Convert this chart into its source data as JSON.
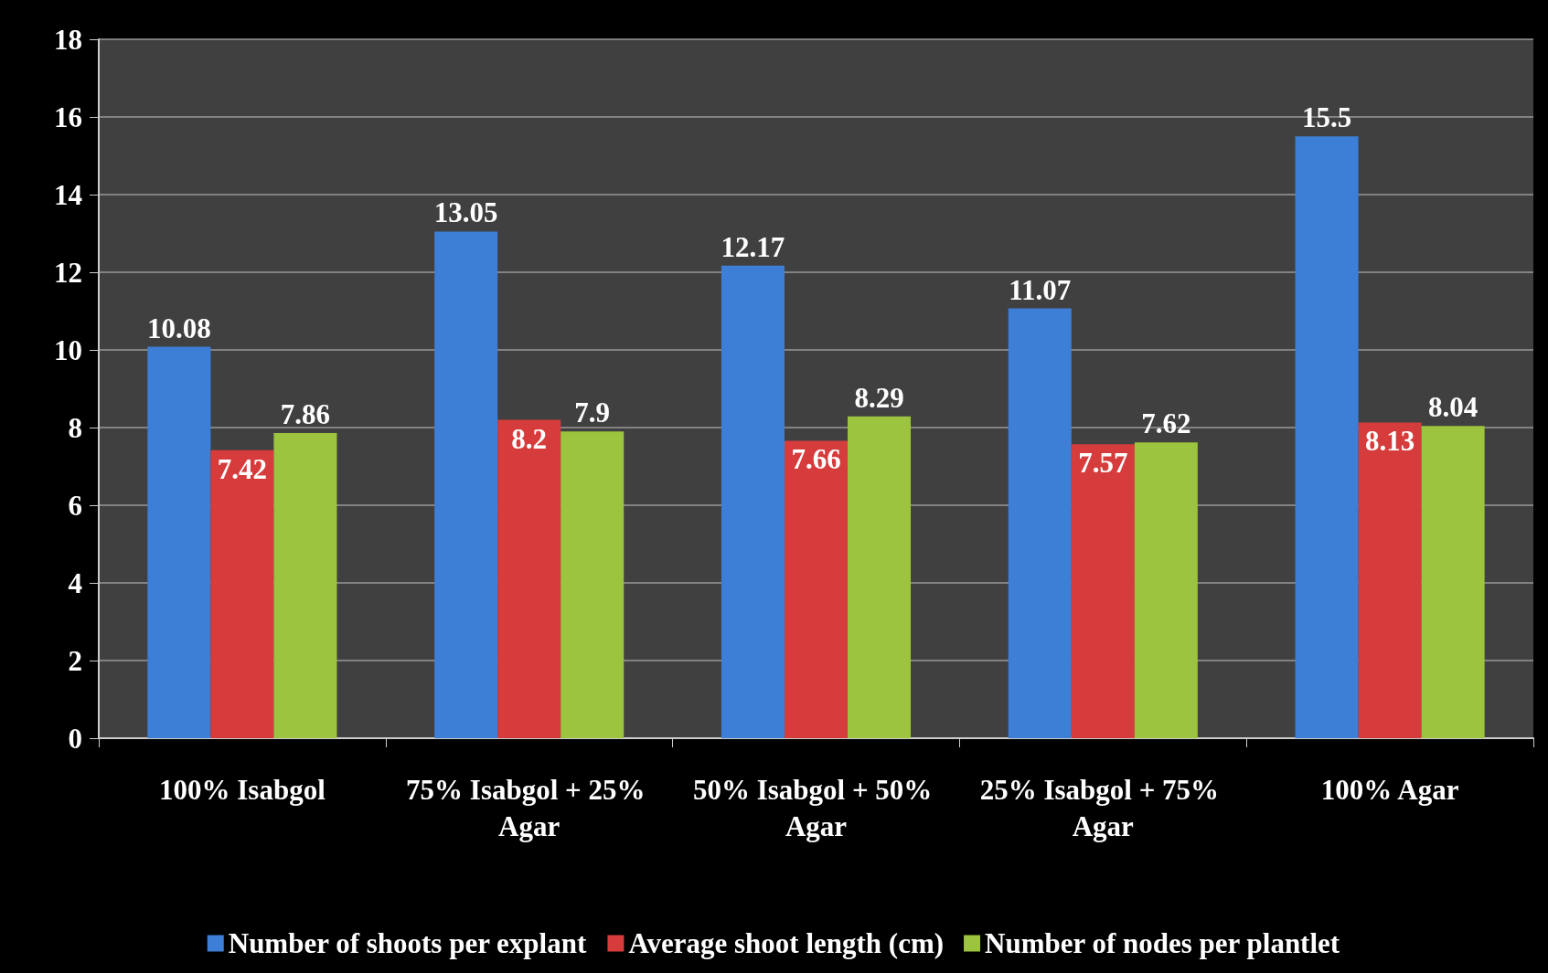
{
  "chart_data": {
    "type": "bar",
    "categories": [
      "100% Isabgol",
      "75% Isabgol + 25% Agar",
      "50% Isabgol + 50% Agar",
      "25% Isabgol + 75% Agar",
      "100% Agar"
    ],
    "series": [
      {
        "name": "Number of shoots per explant",
        "color": "#3d7fd6",
        "values": [
          10.08,
          13.05,
          12.17,
          11.07,
          15.5
        ]
      },
      {
        "name": "Average shoot length (cm)",
        "color": "#d63c3c",
        "values": [
          7.42,
          8.2,
          7.66,
          7.57,
          8.13
        ]
      },
      {
        "name": "Number of nodes per plantlet",
        "color": "#9cc43e",
        "values": [
          7.86,
          7.9,
          8.29,
          7.62,
          8.04
        ]
      }
    ],
    "ylim": [
      0,
      18
    ],
    "yticks": [
      0,
      2,
      4,
      6,
      8,
      10,
      12,
      14,
      16,
      18
    ],
    "grid": "y",
    "legend": "bottom",
    "data_labels": true
  }
}
